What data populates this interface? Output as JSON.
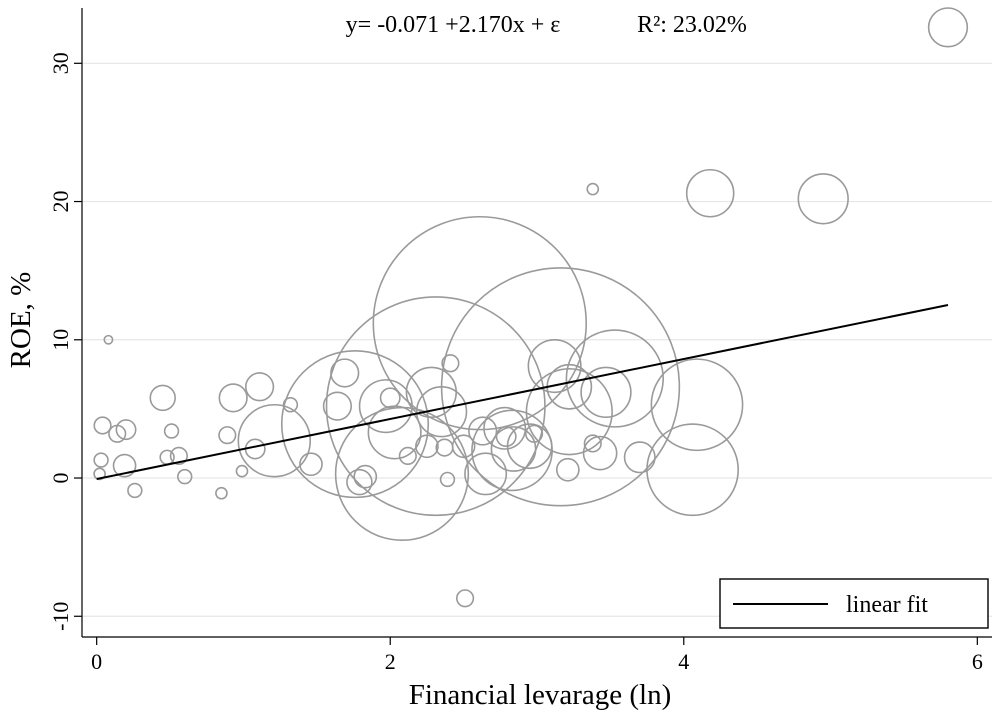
{
  "chart_data": {
    "type": "scatter",
    "title": "",
    "xlabel": "Financial levarage (ln)",
    "ylabel": "ROE, %",
    "xlim": [
      -0.1,
      6.1
    ],
    "ylim": [
      -11.5,
      34
    ],
    "xticks": [
      0,
      2,
      4,
      6
    ],
    "yticks": [
      -10,
      0,
      10,
      20,
      30
    ],
    "x_tick_labels": [
      "0",
      "2",
      "4",
      "6"
    ],
    "y_tick_labels": [
      "-10",
      "0",
      "10",
      "20",
      "30"
    ],
    "grid": true,
    "legend_placement": "bottom-right",
    "annotations": {
      "equation": "y= -0.071 +2.170x + ε",
      "r_squared": "R²: 23.02%"
    },
    "fit": {
      "name": "linear fit",
      "intercept": -0.071,
      "slope": 2.17,
      "x_range": [
        0,
        5.8
      ]
    },
    "points": [
      {
        "x": 0.02,
        "y": 0.3,
        "r": 0.4
      },
      {
        "x": 0.03,
        "y": 1.3,
        "r": 0.5
      },
      {
        "x": 0.04,
        "y": 3.8,
        "r": 0.6
      },
      {
        "x": 0.08,
        "y": 10.0,
        "r": 0.3
      },
      {
        "x": 0.14,
        "y": 3.2,
        "r": 0.6
      },
      {
        "x": 0.19,
        "y": 0.9,
        "r": 0.8
      },
      {
        "x": 0.2,
        "y": 3.5,
        "r": 0.7
      },
      {
        "x": 0.26,
        "y": -0.9,
        "r": 0.5
      },
      {
        "x": 0.45,
        "y": 5.8,
        "r": 0.9
      },
      {
        "x": 0.48,
        "y": 1.5,
        "r": 0.5
      },
      {
        "x": 0.51,
        "y": 3.4,
        "r": 0.5
      },
      {
        "x": 0.56,
        "y": 1.6,
        "r": 0.6
      },
      {
        "x": 0.6,
        "y": 0.1,
        "r": 0.5
      },
      {
        "x": 0.85,
        "y": -1.1,
        "r": 0.4
      },
      {
        "x": 0.89,
        "y": 3.1,
        "r": 0.6
      },
      {
        "x": 0.93,
        "y": 5.8,
        "r": 1.0
      },
      {
        "x": 0.99,
        "y": 0.5,
        "r": 0.4
      },
      {
        "x": 1.08,
        "y": 2.1,
        "r": 0.7
      },
      {
        "x": 1.11,
        "y": 6.6,
        "r": 1.0
      },
      {
        "x": 1.21,
        "y": 2.7,
        "r": 2.6
      },
      {
        "x": 1.32,
        "y": 5.3,
        "r": 0.5
      },
      {
        "x": 1.46,
        "y": 1.0,
        "r": 0.8
      },
      {
        "x": 1.64,
        "y": 5.2,
        "r": 1.0
      },
      {
        "x": 1.69,
        "y": 7.6,
        "r": 1.0
      },
      {
        "x": 1.76,
        "y": 3.9,
        "r": 5.3
      },
      {
        "x": 1.79,
        "y": -0.3,
        "r": 0.9
      },
      {
        "x": 1.83,
        "y": 0.1,
        "r": 0.8
      },
      {
        "x": 1.97,
        "y": 5.2,
        "r": 1.9
      },
      {
        "x": 2.0,
        "y": 5.8,
        "r": 0.7
      },
      {
        "x": 2.03,
        "y": 3.3,
        "r": 1.9
      },
      {
        "x": 2.08,
        "y": 0.3,
        "r": 4.8
      },
      {
        "x": 2.12,
        "y": 1.6,
        "r": 0.6
      },
      {
        "x": 2.25,
        "y": 2.3,
        "r": 0.8
      },
      {
        "x": 2.28,
        "y": 6.2,
        "r": 1.8
      },
      {
        "x": 2.31,
        "y": 5.2,
        "r": 7.9
      },
      {
        "x": 2.35,
        "y": 4.8,
        "r": 1.8
      },
      {
        "x": 2.37,
        "y": 2.2,
        "r": 0.6
      },
      {
        "x": 2.39,
        "y": -0.1,
        "r": 0.5
      },
      {
        "x": 2.41,
        "y": 8.3,
        "r": 0.6
      },
      {
        "x": 2.5,
        "y": 2.3,
        "r": 0.8
      },
      {
        "x": 2.51,
        "y": -8.7,
        "r": 0.6
      },
      {
        "x": 2.61,
        "y": 11.2,
        "r": 7.7
      },
      {
        "x": 2.63,
        "y": 3.4,
        "r": 1.0
      },
      {
        "x": 2.65,
        "y": 0.3,
        "r": 1.5
      },
      {
        "x": 2.78,
        "y": 3.6,
        "r": 1.5
      },
      {
        "x": 2.79,
        "y": 3.0,
        "r": 0.7
      },
      {
        "x": 2.83,
        "y": 2.0,
        "r": 2.9
      },
      {
        "x": 2.84,
        "y": 2.1,
        "r": 1.6
      },
      {
        "x": 2.95,
        "y": 2.3,
        "r": 1.6
      },
      {
        "x": 2.98,
        "y": 3.2,
        "r": 0.6
      },
      {
        "x": 3.16,
        "y": 6.6,
        "r": 8.6
      },
      {
        "x": 3.12,
        "y": 8.1,
        "r": 1.9
      },
      {
        "x": 3.22,
        "y": 4.8,
        "r": 3.1
      },
      {
        "x": 3.22,
        "y": 6.6,
        "r": 1.6
      },
      {
        "x": 3.21,
        "y": 0.6,
        "r": 0.8
      },
      {
        "x": 3.38,
        "y": 20.9,
        "r": 0.4
      },
      {
        "x": 3.38,
        "y": 2.5,
        "r": 0.6
      },
      {
        "x": 3.43,
        "y": 1.8,
        "r": 1.2
      },
      {
        "x": 3.47,
        "y": 6.2,
        "r": 1.8
      },
      {
        "x": 3.53,
        "y": 7.2,
        "r": 3.5
      },
      {
        "x": 3.7,
        "y": 1.5,
        "r": 1.1
      },
      {
        "x": 4.06,
        "y": 0.6,
        "r": 3.3
      },
      {
        "x": 4.09,
        "y": 5.3,
        "r": 3.3
      },
      {
        "x": 4.18,
        "y": 20.6,
        "r": 1.7
      },
      {
        "x": 4.95,
        "y": 20.2,
        "r": 1.8
      },
      {
        "x": 5.8,
        "y": 32.6,
        "r": 1.4
      }
    ]
  },
  "legend": {
    "items": [
      {
        "label": "linear fit"
      }
    ]
  }
}
